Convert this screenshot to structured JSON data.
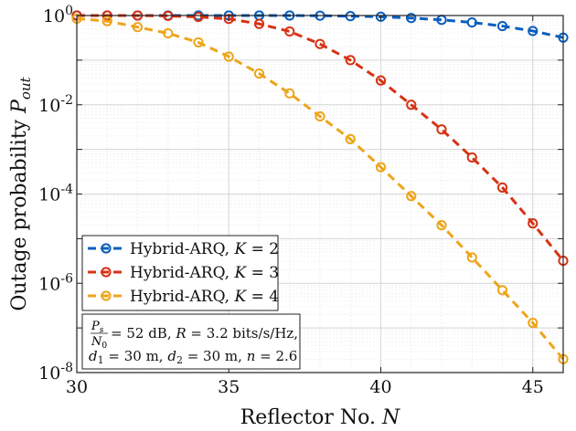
{
  "chart_data": {
    "type": "line",
    "xlabel": "Reflector No. N",
    "ylabel": "Outage probability P_out",
    "xlim": [
      30,
      46
    ],
    "ylim": [
      1e-08,
      1
    ],
    "y_scale": "log",
    "grid": true,
    "legend_position": "bottom-left",
    "x_ticks": [
      "30",
      "35",
      "40",
      "45"
    ],
    "y_ticks": [
      {
        "base": "10",
        "exp": "0"
      },
      {
        "base": "10",
        "exp": "-2"
      },
      {
        "base": "10",
        "exp": "-4"
      },
      {
        "base": "10",
        "exp": "-6"
      },
      {
        "base": "10",
        "exp": "-8"
      }
    ],
    "x": [
      30,
      31,
      32,
      33,
      34,
      35,
      36,
      37,
      38,
      39,
      40,
      41,
      42,
      43,
      44,
      45,
      46
    ],
    "series": [
      {
        "name": "Hybrid-ARQ, K = 2",
        "color": "#0a5fbf",
        "values": [
          1.0,
          1.0,
          1.0,
          1.0,
          1.0,
          1.0,
          1.0,
          1.0,
          0.99,
          0.97,
          0.94,
          0.88,
          0.8,
          0.7,
          0.58,
          0.45,
          0.32
        ]
      },
      {
        "name": "Hybrid-ARQ, K = 3",
        "color": "#d63314",
        "values": [
          1.0,
          1.0,
          1.0,
          0.98,
          0.93,
          0.84,
          0.65,
          0.44,
          0.23,
          0.1,
          0.035,
          0.01,
          0.0028,
          0.00066,
          0.00014,
          2.2e-05,
          3.2e-06
        ]
      },
      {
        "name": "Hybrid-ARQ, K = 4",
        "color": "#eda51a",
        "values": [
          0.85,
          0.75,
          0.55,
          0.4,
          0.25,
          0.12,
          0.05,
          0.018,
          0.0055,
          0.0017,
          0.0004,
          9e-05,
          2e-05,
          3.8e-06,
          7e-07,
          1.3e-07,
          2e-08
        ]
      }
    ],
    "legend": [
      {
        "prefix": "Hybrid-ARQ, ",
        "var": "K",
        "value": " = 2"
      },
      {
        "prefix": "Hybrid-ARQ, ",
        "var": "K",
        "value": " = 3"
      },
      {
        "prefix": "Hybrid-ARQ, ",
        "var": "K",
        "value": " = 4"
      }
    ],
    "annotation": {
      "frac_num": "P",
      "frac_num_sub": "s",
      "frac_den": "N",
      "frac_den_sub": "0",
      "line1_rest_a": " = 52 dB, ",
      "line1_var_r": "R",
      "line1_rest_b": " = 3.2 bits/s/Hz,",
      "line2_d1": "d",
      "line2_d1_sub": "1",
      "line2_rest_a": " = 30 m, ",
      "line2_d2": "d",
      "line2_d2_sub": "2",
      "line2_rest_b": " = 30 m, ",
      "line2_n": "n",
      "line2_rest_c": " = 2.6"
    },
    "xlabel_parts": {
      "text": "Reflector No. ",
      "var": "N"
    },
    "ylabel_parts": {
      "text": "Outage probability ",
      "var": "P",
      "sub": "out"
    }
  }
}
